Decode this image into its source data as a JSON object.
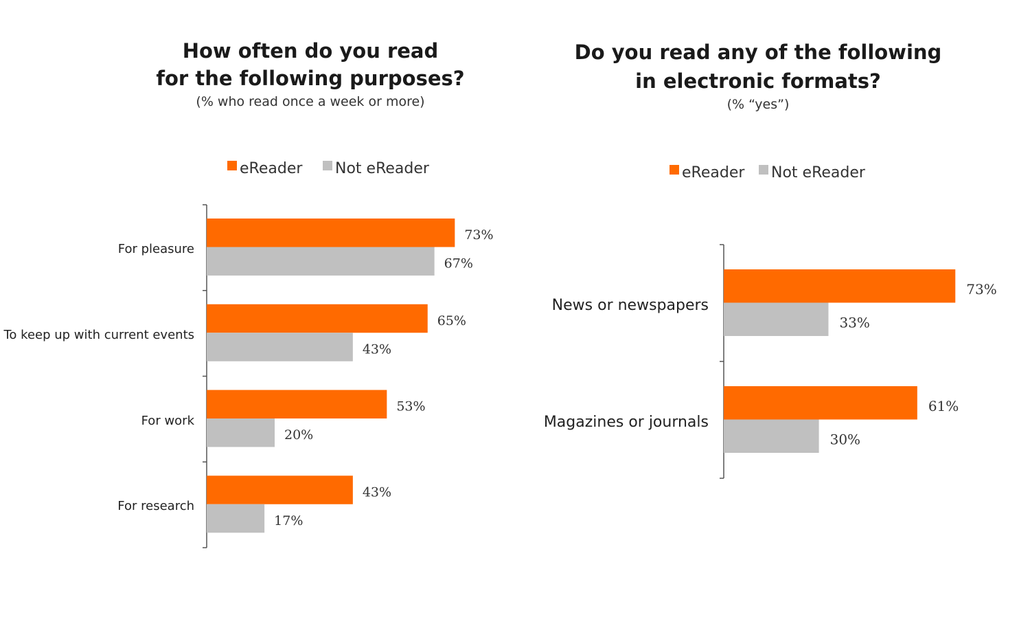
{
  "colors": {
    "ereader": "#ff6a00",
    "not_ereader": "#c0c0c0",
    "axis": "#555555"
  },
  "chart_data": [
    {
      "type": "bar",
      "orientation": "horizontal",
      "title_line1": "How often do you read",
      "title_line2": "for the following purposes?",
      "subtitle": "(% who read once a week or more)",
      "legend_placement": "top",
      "categories": [
        "For pleasure",
        "To keep up with current events",
        "For work",
        "For research"
      ],
      "series": [
        {
          "name": "eReader",
          "values": [
            73,
            65,
            53,
            43
          ],
          "labels": [
            "73%",
            "65%",
            "53%",
            "43%"
          ]
        },
        {
          "name": "Not eReader",
          "values": [
            67,
            43,
            20,
            17
          ],
          "labels": [
            "67%",
            "43%",
            "20%",
            "17%"
          ]
        }
      ],
      "xlim": [
        0,
        100
      ],
      "grid": false
    },
    {
      "type": "bar",
      "orientation": "horizontal",
      "title_line1": "Do you read any of the following",
      "title_line2": "in electronic formats?",
      "subtitle": "(% “yes”)",
      "legend_placement": "top",
      "categories": [
        "News or newspapers",
        "Magazines or journals"
      ],
      "series": [
        {
          "name": "eReader",
          "values": [
            73,
            61
          ],
          "labels": [
            "73%",
            "61%"
          ]
        },
        {
          "name": "Not eReader",
          "values": [
            33,
            30
          ],
          "labels": [
            "33%",
            "30%"
          ]
        }
      ],
      "xlim": [
        0,
        100
      ],
      "grid": false
    }
  ]
}
